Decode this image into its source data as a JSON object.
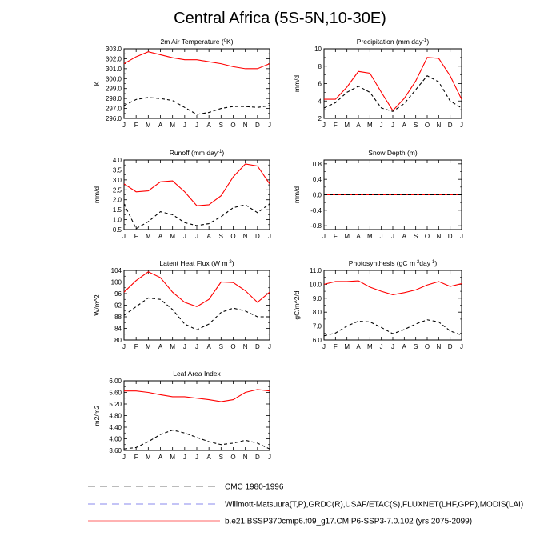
{
  "title": "Central Africa (5S-5N,10-30E)",
  "month_ticks": [
    "J",
    "F",
    "M",
    "A",
    "M",
    "J",
    "J",
    "A",
    "S",
    "O",
    "N",
    "D",
    "J"
  ],
  "legend": [
    {
      "label": "CMC 1980-1996",
      "color": "#777777",
      "dash": "dashed"
    },
    {
      "label": "Willmott-Matsuura(T,P),GRDC(R),USAF/ETAC(S),FLUXNET(LHF,GPP),MODIS(LAI)",
      "color": "#8888ee",
      "dash": "dashed"
    },
    {
      "label": "b.e21.BSSP370cmip6.f09_g17.CMIP6-SSP3-7.0.102 (yrs 2075-2099)",
      "color": "#ff6666",
      "dash": "solid"
    }
  ],
  "chart_data": [
    {
      "type": "line",
      "title": "2m Air Temperature (",
      "title_sup": "o",
      "title_after": "K)",
      "ylabel": "K",
      "ylim": [
        296.0,
        303.0
      ],
      "yticks": [
        "296.0",
        "297.0",
        "298.0",
        "299.0",
        "300.0",
        "301.0",
        "302.0",
        "303.0"
      ],
      "x": [
        "J",
        "F",
        "M",
        "A",
        "M",
        "J",
        "J",
        "A",
        "S",
        "O",
        "N",
        "D",
        "J"
      ],
      "series": [
        {
          "color": "#ff0000",
          "dash": "solid",
          "values": [
            301.5,
            302.2,
            302.7,
            302.4,
            302.1,
            301.9,
            301.9,
            301.7,
            301.5,
            301.2,
            301.0,
            301.0,
            301.5
          ]
        },
        {
          "color": "#000000",
          "dash": "dashed",
          "values": [
            297.3,
            297.9,
            298.1,
            298.0,
            297.8,
            297.1,
            296.4,
            296.6,
            297.0,
            297.2,
            297.2,
            297.1,
            297.3
          ]
        }
      ]
    },
    {
      "type": "line",
      "title": "Precipitation (mm day",
      "title_sup": "-1",
      "title_after": ")",
      "ylabel": "mm/d",
      "ylim": [
        2,
        10
      ],
      "yticks": [
        "2",
        "4",
        "6",
        "8",
        "10"
      ],
      "x": [
        "J",
        "F",
        "M",
        "A",
        "M",
        "J",
        "J",
        "A",
        "S",
        "O",
        "N",
        "D",
        "J"
      ],
      "series": [
        {
          "color": "#ff0000",
          "dash": "solid",
          "values": [
            4.2,
            4.2,
            5.6,
            7.4,
            7.2,
            5.0,
            2.9,
            4.3,
            6.3,
            9.0,
            8.9,
            6.9,
            4.2
          ]
        },
        {
          "color": "#000000",
          "dash": "dashed",
          "values": [
            3.2,
            3.8,
            5.0,
            5.7,
            5.0,
            3.2,
            2.8,
            3.7,
            5.3,
            6.9,
            6.2,
            4.0,
            3.2
          ]
        }
      ]
    },
    {
      "type": "line",
      "title": "Runoff (mm day",
      "title_sup": "-1",
      "title_after": ")",
      "ylabel": "mm/d",
      "ylim": [
        0.5,
        4.0
      ],
      "yticks": [
        "0.5",
        "1.0",
        "1.5",
        "2.0",
        "2.5",
        "3.0",
        "3.5",
        "4.0"
      ],
      "x": [
        "J",
        "F",
        "M",
        "A",
        "M",
        "J",
        "J",
        "A",
        "S",
        "O",
        "N",
        "D",
        "J"
      ],
      "series": [
        {
          "color": "#ff0000",
          "dash": "solid",
          "values": [
            2.8,
            2.4,
            2.45,
            2.9,
            2.95,
            2.4,
            1.7,
            1.75,
            2.2,
            3.15,
            3.8,
            3.7,
            2.8
          ]
        },
        {
          "color": "#000000",
          "dash": "dashed",
          "values": [
            1.8,
            0.55,
            0.9,
            1.4,
            1.25,
            0.85,
            0.7,
            0.8,
            1.15,
            1.6,
            1.75,
            1.35,
            1.8
          ]
        }
      ]
    },
    {
      "type": "line",
      "title": "Snow Depth (m)",
      "title_sup": "",
      "title_after": "",
      "ylabel": "mm/d",
      "ylim": [
        -0.9,
        0.9
      ],
      "yticks": [
        "-0.8",
        "-0.4",
        "0.0",
        "0.4",
        "0.8"
      ],
      "ytick_values": [
        -0.8,
        -0.4,
        0.0,
        0.4,
        0.8
      ],
      "yminor": [
        -0.6,
        -0.2,
        0.2,
        0.6
      ],
      "x": [
        "J",
        "F",
        "M",
        "A",
        "M",
        "J",
        "J",
        "A",
        "S",
        "O",
        "N",
        "D",
        "J"
      ],
      "series": [
        {
          "color": "#ff0000",
          "dash": "solid",
          "values": [
            0,
            0,
            0,
            0,
            0,
            0,
            0,
            0,
            0,
            0,
            0,
            0,
            0
          ]
        },
        {
          "color": "#000000",
          "dash": "dashed",
          "values": [
            0,
            0,
            0,
            0,
            0,
            0,
            0,
            0,
            0,
            0,
            0,
            0,
            0
          ]
        }
      ]
    },
    {
      "type": "line",
      "title": "Latent Heat Flux (W m",
      "title_sup": "-2",
      "title_after": ")",
      "ylabel": "W/m^2",
      "ylim": [
        80,
        104
      ],
      "yticks": [
        "80",
        "84",
        "88",
        "92",
        "96",
        "100",
        "104"
      ],
      "x": [
        "J",
        "F",
        "M",
        "A",
        "M",
        "J",
        "J",
        "A",
        "S",
        "O",
        "N",
        "D",
        "J"
      ],
      "series": [
        {
          "color": "#ff0000",
          "dash": "solid",
          "values": [
            96.5,
            100.5,
            103.5,
            101.5,
            96.5,
            93.0,
            91.5,
            94.0,
            100.0,
            99.8,
            97.0,
            93.0,
            96.5
          ]
        },
        {
          "color": "#000000",
          "dash": "dashed",
          "values": [
            88.5,
            91.5,
            94.5,
            94.0,
            90.5,
            85.5,
            83.5,
            85.5,
            89.5,
            91.0,
            90.0,
            88.0,
            88.0
          ]
        }
      ]
    },
    {
      "type": "line",
      "title": "Photosynthesis (gC m",
      "title_sup": "-2",
      "title_after": "day",
      "title_sup2": "-1",
      "title_end": ")",
      "ylabel": "gC/m^2/d",
      "ylim": [
        6.0,
        11.0
      ],
      "yticks": [
        "6.0",
        "7.0",
        "8.0",
        "9.0",
        "10.0",
        "11.0"
      ],
      "x": [
        "J",
        "F",
        "M",
        "A",
        "M",
        "J",
        "J",
        "A",
        "S",
        "O",
        "N",
        "D",
        "J"
      ],
      "series": [
        {
          "color": "#ff0000",
          "dash": "solid",
          "values": [
            10.0,
            10.2,
            10.2,
            10.25,
            9.8,
            9.5,
            9.25,
            9.4,
            9.6,
            9.95,
            10.2,
            9.85,
            10.05
          ]
        },
        {
          "color": "#000000",
          "dash": "dashed",
          "values": [
            6.3,
            6.5,
            7.0,
            7.35,
            7.3,
            6.9,
            6.45,
            6.75,
            7.15,
            7.45,
            7.3,
            6.65,
            6.35
          ]
        }
      ]
    },
    {
      "type": "line",
      "title": "Leaf Area Index",
      "title_sup": "",
      "title_after": "",
      "ylabel": "m2/m2",
      "ylim": [
        3.6,
        6.0
      ],
      "yticks": [
        "3.60",
        "4.00",
        "4.40",
        "4.80",
        "5.20",
        "5.60",
        "6.00"
      ],
      "x": [
        "J",
        "F",
        "M",
        "A",
        "M",
        "J",
        "J",
        "A",
        "S",
        "O",
        "N",
        "D",
        "J"
      ],
      "series": [
        {
          "color": "#ff0000",
          "dash": "solid",
          "values": [
            5.65,
            5.65,
            5.6,
            5.52,
            5.45,
            5.45,
            5.4,
            5.35,
            5.28,
            5.35,
            5.6,
            5.7,
            5.65
          ]
        },
        {
          "color": "#000000",
          "dash": "dashed",
          "values": [
            3.65,
            3.7,
            3.9,
            4.15,
            4.3,
            4.2,
            4.05,
            3.9,
            3.8,
            3.85,
            3.95,
            3.85,
            3.65
          ]
        }
      ]
    }
  ]
}
